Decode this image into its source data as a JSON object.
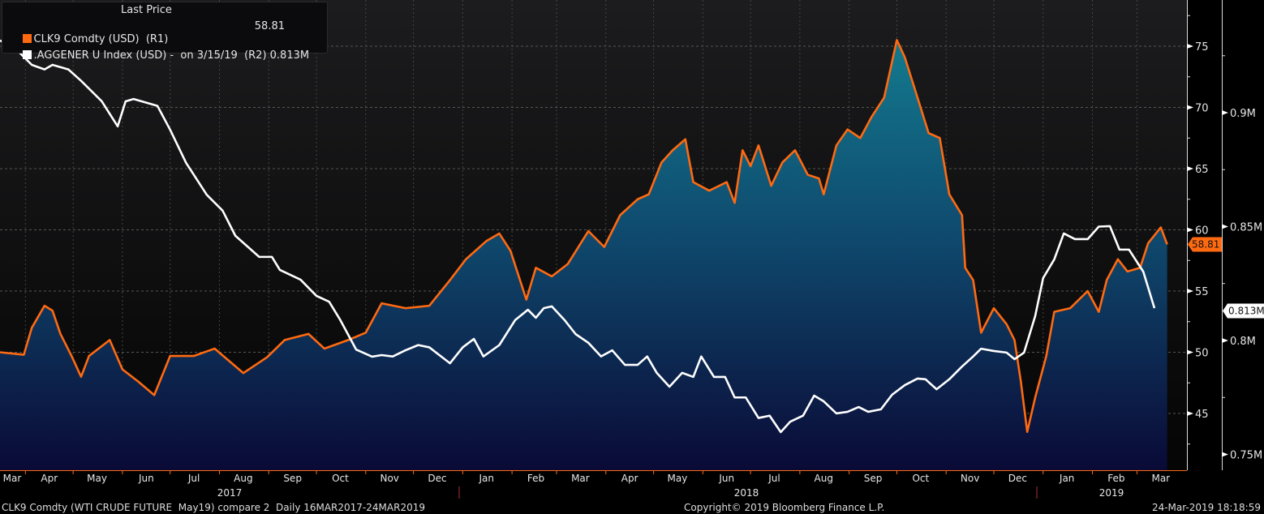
{
  "chart_data": {
    "type": "line",
    "title": "Last Price",
    "x_unit": "days since 16MAR2017",
    "month_labels": [
      "Mar",
      "Apr",
      "May",
      "Jun",
      "Jul",
      "Aug",
      "Sep",
      "Oct",
      "Nov",
      "Dec",
      "Jan",
      "Feb",
      "Mar",
      "Apr",
      "May",
      "Jun",
      "Jul",
      "Aug",
      "Sep",
      "Oct",
      "Nov",
      "Dec",
      "Jan",
      "Feb",
      "Mar"
    ],
    "year_labels": [
      "2017",
      "2018",
      "2019"
    ],
    "right_axis_1": {
      "ticks": [
        "75",
        "70",
        "65",
        "60",
        "55",
        "50",
        "45"
      ],
      "range": [
        42.5,
        78.8
      ]
    },
    "right_axis_2": {
      "ticks": [
        "0.9M",
        "0.85M",
        "0.8M",
        "0.75M"
      ],
      "range": [
        0.743,
        0.95
      ]
    },
    "grid": true,
    "legend_position": "top-left",
    "series": [
      {
        "name": "CLK9 Comdty (USD)  (R1)",
        "axis": "R1",
        "color": "#ff6a10",
        "last_value": "58.81",
        "points": [
          [
            0,
            50.0
          ],
          [
            15,
            49.8
          ],
          [
            20,
            52
          ],
          [
            28,
            53.8
          ],
          [
            33,
            53.4
          ],
          [
            38,
            51.5
          ],
          [
            45,
            49.7
          ],
          [
            51,
            48
          ],
          [
            56,
            49.7
          ],
          [
            69,
            51
          ],
          [
            77,
            48.6
          ],
          [
            87,
            47.6
          ],
          [
            97,
            46.5
          ],
          [
            107,
            49.7
          ],
          [
            122,
            49.7
          ],
          [
            135,
            50.3
          ],
          [
            153,
            48.3
          ],
          [
            168,
            49.6
          ],
          [
            179,
            51
          ],
          [
            194,
            51.5
          ],
          [
            204,
            50.3
          ],
          [
            219,
            51
          ],
          [
            230,
            51.6
          ],
          [
            240,
            54
          ],
          [
            255,
            53.6
          ],
          [
            270,
            53.8
          ],
          [
            283,
            55.9
          ],
          [
            293,
            57.6
          ],
          [
            306,
            59.1
          ],
          [
            314,
            59.7
          ],
          [
            321,
            58.3
          ],
          [
            331,
            54.3
          ],
          [
            337,
            56.9
          ],
          [
            347,
            56.2
          ],
          [
            357,
            57.2
          ],
          [
            370,
            59.9
          ],
          [
            380,
            58.6
          ],
          [
            390,
            61.2
          ],
          [
            401,
            62.5
          ],
          [
            408,
            62.9
          ],
          [
            416,
            65.5
          ],
          [
            423,
            66.5
          ],
          [
            431,
            67.4
          ],
          [
            436,
            63.9
          ],
          [
            446,
            63.2
          ],
          [
            457,
            63.9
          ],
          [
            462,
            62.2
          ],
          [
            467,
            66.5
          ],
          [
            472,
            65.2
          ],
          [
            477,
            66.9
          ],
          [
            485,
            63.6
          ],
          [
            492,
            65.5
          ],
          [
            500,
            66.5
          ],
          [
            508,
            64.5
          ],
          [
            515,
            64.2
          ],
          [
            518,
            62.9
          ],
          [
            526,
            66.9
          ],
          [
            533,
            68.2
          ],
          [
            541,
            67.5
          ],
          [
            548,
            69.2
          ],
          [
            556,
            70.8
          ],
          [
            564,
            75.5
          ],
          [
            569,
            74.1
          ],
          [
            577,
            70.8
          ],
          [
            584,
            67.9
          ],
          [
            591,
            67.5
          ],
          [
            597,
            62.9
          ],
          [
            605,
            61.2
          ],
          [
            607,
            56.9
          ],
          [
            612,
            55.9
          ],
          [
            617,
            51.6
          ],
          [
            625,
            53.6
          ],
          [
            633,
            52.3
          ],
          [
            638,
            51
          ],
          [
            642,
            47.6
          ],
          [
            646,
            43.5
          ],
          [
            651,
            46.3
          ],
          [
            658,
            49.7
          ],
          [
            663,
            53.3
          ],
          [
            673,
            53.6
          ],
          [
            684,
            55
          ],
          [
            691,
            53.3
          ],
          [
            696,
            55.9
          ],
          [
            703,
            57.6
          ],
          [
            709,
            56.6
          ],
          [
            717,
            56.9
          ],
          [
            722,
            58.9
          ],
          [
            730,
            60.2
          ],
          [
            734,
            58.81
          ]
        ]
      },
      {
        "name": ".AGGENER U Index (USD) -  on 3/15/19  (R2)",
        "axis": "R2",
        "color": "#ffffff",
        "last_value": "0.813M",
        "points": [
          [
            0,
            0.9317
          ],
          [
            10,
            0.928
          ],
          [
            20,
            0.921
          ],
          [
            28,
            0.919
          ],
          [
            33,
            0.921
          ],
          [
            43,
            0.919
          ],
          [
            51,
            0.914
          ],
          [
            64,
            0.905
          ],
          [
            74,
            0.894
          ],
          [
            79,
            0.905
          ],
          [
            84,
            0.906
          ],
          [
            94,
            0.904
          ],
          [
            99,
            0.903
          ],
          [
            107,
            0.8925
          ],
          [
            117,
            0.878
          ],
          [
            130,
            0.864
          ],
          [
            140,
            0.857
          ],
          [
            148,
            0.846
          ],
          [
            163,
            0.8367
          ],
          [
            171,
            0.8367
          ],
          [
            176,
            0.831
          ],
          [
            189,
            0.8267
          ],
          [
            199,
            0.8196
          ],
          [
            207,
            0.817
          ],
          [
            214,
            0.809
          ],
          [
            224,
            0.796
          ],
          [
            234,
            0.7929
          ],
          [
            240,
            0.7936
          ],
          [
            247,
            0.793
          ],
          [
            255,
            0.7957
          ],
          [
            263,
            0.798
          ],
          [
            270,
            0.797
          ],
          [
            283,
            0.79
          ],
          [
            291,
            0.797
          ],
          [
            298,
            0.8007
          ],
          [
            304,
            0.793
          ],
          [
            314,
            0.798
          ],
          [
            324,
            0.809
          ],
          [
            332,
            0.8135
          ],
          [
            337,
            0.81
          ],
          [
            342,
            0.8142
          ],
          [
            347,
            0.815
          ],
          [
            355,
            0.809
          ],
          [
            362,
            0.8028
          ],
          [
            370,
            0.799
          ],
          [
            378,
            0.793
          ],
          [
            385,
            0.7957
          ],
          [
            393,
            0.7893
          ],
          [
            401,
            0.7893
          ],
          [
            407,
            0.793
          ],
          [
            413,
            0.7858
          ],
          [
            421,
            0.7797
          ],
          [
            429,
            0.7858
          ],
          [
            436,
            0.784
          ],
          [
            441,
            0.793
          ],
          [
            449,
            0.784
          ],
          [
            456,
            0.784
          ],
          [
            462,
            0.775
          ],
          [
            469,
            0.775
          ],
          [
            477,
            0.766
          ],
          [
            484,
            0.767
          ],
          [
            491,
            0.7598
          ],
          [
            497,
            0.7644
          ],
          [
            505,
            0.767
          ],
          [
            512,
            0.7758
          ],
          [
            518,
            0.7733
          ],
          [
            526,
            0.768
          ],
          [
            533,
            0.7687
          ],
          [
            540,
            0.7708
          ],
          [
            546,
            0.7687
          ],
          [
            554,
            0.7698
          ],
          [
            561,
            0.7762
          ],
          [
            569,
            0.7804
          ],
          [
            577,
            0.7833
          ],
          [
            582,
            0.783
          ],
          [
            589,
            0.7786
          ],
          [
            597,
            0.783
          ],
          [
            605,
            0.7886
          ],
          [
            612,
            0.793
          ],
          [
            617,
            0.7964
          ],
          [
            625,
            0.7954
          ],
          [
            633,
            0.7947
          ],
          [
            638,
            0.7918
          ],
          [
            644,
            0.7947
          ],
          [
            651,
            0.8107
          ],
          [
            656,
            0.8274
          ],
          [
            663,
            0.8356
          ],
          [
            669,
            0.847
          ],
          [
            676,
            0.8445
          ],
          [
            684,
            0.8445
          ],
          [
            691,
            0.85
          ],
          [
            698,
            0.8502
          ],
          [
            704,
            0.8399
          ],
          [
            710,
            0.8399
          ],
          [
            719,
            0.8302
          ],
          [
            726,
            0.8142
          ]
        ]
      }
    ]
  },
  "legend": {
    "header": "Last Price",
    "row1_label": "CLK9 Comdty (USD)  (R1)",
    "row1_value": "58.81",
    "row2_label": ".AGGENER U Index (USD) -  on 3/15/19  (R2) 0.813M"
  },
  "footer": {
    "left": "CLK9 Comdty (WTI CRUDE FUTURE  May19) compare 2  Daily 16MAR2017-24MAR2019",
    "center": "Copyright© 2019 Bloomberg Finance L.P.",
    "right": "24-Mar-2019 18:18:59"
  }
}
